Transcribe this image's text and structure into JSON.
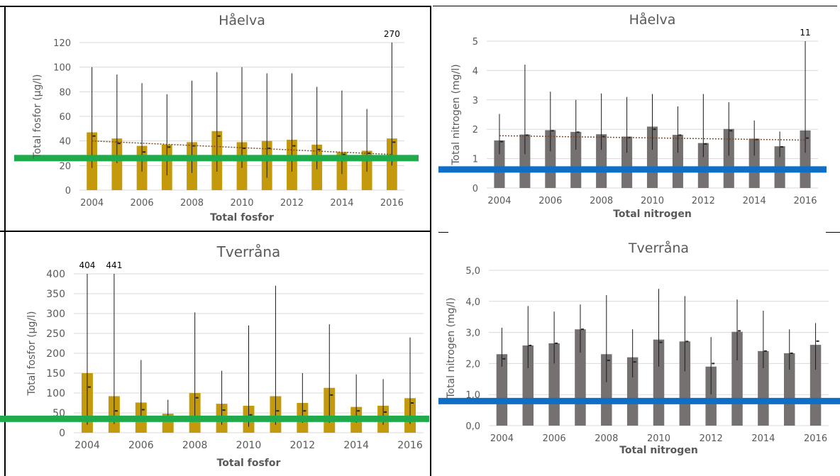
{
  "chart_data": [
    {
      "id": "p1",
      "type": "bar",
      "title": "Håelva",
      "ylabel": "Total fosfor (µg/l)",
      "xlabel": "Total fosfor",
      "ylim": [
        0,
        120
      ],
      "yticks": [
        "0",
        "20",
        "40",
        "60",
        "80",
        "100",
        "120"
      ],
      "categories": [
        2004,
        2005,
        2006,
        2007,
        2008,
        2009,
        2010,
        2011,
        2012,
        2013,
        2014,
        2015,
        2016
      ],
      "xtick_labels": [
        "2004",
        "2006",
        "2008",
        "2010",
        "2012",
        "2014",
        "2016"
      ],
      "bar_color": "#c49a0c",
      "values": [
        47,
        42,
        36,
        37,
        39,
        48,
        39,
        40,
        41,
        37,
        31,
        32,
        42
      ],
      "medians": [
        44,
        38,
        31,
        35,
        36,
        44,
        34,
        34,
        36,
        33,
        29,
        30,
        39
      ],
      "min": [
        18,
        22,
        15,
        12,
        14,
        15,
        18,
        10,
        15,
        17,
        13,
        15,
        20
      ],
      "max": [
        100,
        94,
        87,
        78,
        89,
        96,
        100,
        95,
        95,
        84,
        81,
        66,
        120
      ],
      "trend": [
        40,
        29
      ],
      "limit": {
        "value": 26,
        "color": "#1faa4b"
      },
      "annotations": [
        {
          "category": 2016,
          "text": "270"
        }
      ]
    },
    {
      "id": "p2",
      "type": "bar",
      "title": "Håelva",
      "ylabel": "Total nitrogen (mg/l)",
      "xlabel": "Total nitrogen",
      "ylim": [
        0,
        5
      ],
      "yticks": [
        "0",
        "1",
        "2",
        "3",
        "4",
        "5"
      ],
      "categories": [
        2004,
        2005,
        2006,
        2007,
        2008,
        2009,
        2010,
        2011,
        2012,
        2013,
        2014,
        2015,
        2016
      ],
      "xtick_labels": [
        "2004",
        "2006",
        "2008",
        "2010",
        "2012",
        "2014",
        "2016"
      ],
      "bar_color": "#767171",
      "values": [
        1.62,
        1.82,
        1.97,
        1.91,
        1.83,
        1.75,
        2.09,
        1.81,
        1.53,
        2.01,
        1.68,
        1.42,
        1.96
      ],
      "medians": [
        1.58,
        1.8,
        1.95,
        1.9,
        1.75,
        1.72,
        2.0,
        1.8,
        1.5,
        1.95,
        1.65,
        1.4,
        1.7
      ],
      "min": [
        1.15,
        1.15,
        1.25,
        1.3,
        1.3,
        1.2,
        1.3,
        1.2,
        1.05,
        1.1,
        1.1,
        1.05,
        1.2
      ],
      "max": [
        2.52,
        4.2,
        3.28,
        3.0,
        3.22,
        3.1,
        3.2,
        2.78,
        3.2,
        2.92,
        2.3,
        1.92,
        5.0
      ],
      "trend": [
        1.78,
        1.63
      ],
      "limit": {
        "value": 0.63,
        "color": "#0f6fc6"
      },
      "annotations": [
        {
          "category": 2016,
          "text": "11"
        }
      ]
    },
    {
      "id": "p3",
      "type": "bar",
      "title": "Tverråna",
      "ylabel": "Total fosfor (µg/l)",
      "xlabel": "Total fosfor",
      "ylim": [
        0,
        400
      ],
      "yticks": [
        "0",
        "50",
        "100",
        "150",
        "200",
        "250",
        "300",
        "350",
        "400"
      ],
      "categories": [
        2004,
        2005,
        2006,
        2007,
        2008,
        2009,
        2010,
        2011,
        2012,
        2013,
        2014,
        2015,
        2016
      ],
      "xtick_labels": [
        "2004",
        "2006",
        "2008",
        "2010",
        "2012",
        "2014",
        "2016"
      ],
      "bar_color": "#c49a0c",
      "values": [
        150,
        92,
        76,
        48,
        100,
        73,
        68,
        92,
        75,
        113,
        65,
        68,
        87
      ],
      "medians": [
        115,
        55,
        58,
        40,
        88,
        57,
        45,
        55,
        55,
        95,
        55,
        52,
        75
      ],
      "min": [
        20,
        22,
        30,
        30,
        28,
        20,
        15,
        20,
        25,
        25,
        25,
        20,
        22
      ],
      "max": [
        400,
        400,
        183,
        83,
        303,
        156,
        270,
        370,
        150,
        273,
        147,
        135,
        240
      ],
      "trend": null,
      "limit": {
        "value": 35,
        "color": "#1faa4b"
      },
      "annotations": [
        {
          "category": 2004,
          "text": "404"
        },
        {
          "category": 2005,
          "text": "441"
        }
      ]
    },
    {
      "id": "p4",
      "type": "bar",
      "title": "Tverråna",
      "ylabel": "Total nitrogen (mg/l)",
      "xlabel": "Total nitrogen",
      "ylim": [
        0,
        5
      ],
      "yticks": [
        "0,0",
        "1,0",
        "2,0",
        "3,0",
        "4,0",
        "5,0"
      ],
      "categories": [
        2004,
        2005,
        2006,
        2007,
        2008,
        2009,
        2010,
        2011,
        2012,
        2013,
        2014,
        2015,
        2016
      ],
      "xtick_labels": [
        "2004",
        "2006",
        "2008",
        "2010",
        "2012",
        "2014",
        "2016"
      ],
      "bar_color": "#767171",
      "values": [
        2.3,
        2.58,
        2.65,
        3.1,
        2.3,
        2.2,
        2.77,
        2.71,
        1.9,
        3.02,
        2.4,
        2.33,
        2.6
      ],
      "medians": [
        2.15,
        2.58,
        2.65,
        3.1,
        2.1,
        2.05,
        2.68,
        2.71,
        2.0,
        3.05,
        2.4,
        2.33,
        2.72
      ],
      "min": [
        1.9,
        1.85,
        2.0,
        2.35,
        1.4,
        1.55,
        1.9,
        1.75,
        1.0,
        2.1,
        1.85,
        1.8,
        1.8
      ],
      "max": [
        3.15,
        3.85,
        3.67,
        3.9,
        4.2,
        3.1,
        4.4,
        4.17,
        2.85,
        4.06,
        3.7,
        3.1,
        3.3
      ],
      "trend": null,
      "limit": {
        "value": 0.79,
        "color": "#0f6fc6"
      },
      "annotations": []
    }
  ]
}
